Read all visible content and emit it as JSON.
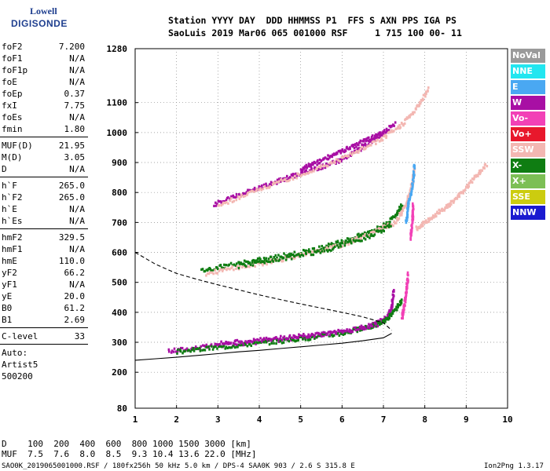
{
  "logo": {
    "line1": "Lowell",
    "line2": "DIGISONDE"
  },
  "header": {
    "line1": "Station YYYY DAY  DDD HHMMSS P1  FFS S AXN PPS IGA PS",
    "line2": "SaoLuis 2019 Mar06 065 001000 RSF     1 715 100 00- 11"
  },
  "params": {
    "group1": [
      {
        "name": "foF2",
        "value": "7.200"
      },
      {
        "name": "foF1",
        "value": "N/A"
      },
      {
        "name": "foF1p",
        "value": "N/A"
      },
      {
        "name": "foE",
        "value": "N/A"
      },
      {
        "name": "foEp",
        "value": "0.37"
      },
      {
        "name": "fxI",
        "value": "7.75"
      },
      {
        "name": "foEs",
        "value": "N/A"
      },
      {
        "name": "fmin",
        "value": "1.80"
      }
    ],
    "group2": [
      {
        "name": "MUF(D)",
        "value": "21.95"
      },
      {
        "name": "M(D)",
        "value": "3.05"
      },
      {
        "name": "D",
        "value": "N/A"
      }
    ],
    "group3": [
      {
        "name": "h`F",
        "value": "265.0"
      },
      {
        "name": "h`F2",
        "value": "265.0"
      },
      {
        "name": "h`E",
        "value": "N/A"
      },
      {
        "name": "h`Es",
        "value": "N/A"
      }
    ],
    "group4": [
      {
        "name": "hmF2",
        "value": "329.5"
      },
      {
        "name": "hmF1",
        "value": "N/A"
      },
      {
        "name": "hmE",
        "value": "110.0"
      },
      {
        "name": "yF2",
        "value": "66.2"
      },
      {
        "name": "yF1",
        "value": "N/A"
      },
      {
        "name": "yE",
        "value": "20.0"
      },
      {
        "name": "B0",
        "value": "61.2"
      },
      {
        "name": "B1",
        "value": "2.69"
      }
    ],
    "clevel": {
      "name": "C-level",
      "value": "33"
    },
    "auto_lines": [
      "Auto:",
      "Artist5",
      "500200"
    ]
  },
  "legend": [
    {
      "label": "NoVal",
      "color": "#9a9a9a"
    },
    {
      "label": "NNE",
      "color": "#22e6f0"
    },
    {
      "label": "E",
      "color": "#4aa8f2"
    },
    {
      "label": "W",
      "color": "#a80fa4"
    },
    {
      "label": "Vo-",
      "color": "#f241b6"
    },
    {
      "label": "Vo+",
      "color": "#e8182c"
    },
    {
      "label": "SSW",
      "color": "#f3b7b2"
    },
    {
      "label": "X-",
      "color": "#0f7d12"
    },
    {
      "label": "X+",
      "color": "#7cbf55"
    },
    {
      "label": "SSE",
      "color": "#cccc0f"
    },
    {
      "label": "NNW",
      "color": "#1a1ad0"
    }
  ],
  "chart_data": {
    "type": "scatter",
    "xlim": [
      1,
      10
    ],
    "ylim": [
      80,
      1280
    ],
    "x_ticks": [
      "1",
      "2",
      "3",
      "4",
      "5",
      "6",
      "7",
      "8",
      "9",
      "10"
    ],
    "y_ticks": [
      "80",
      "200",
      "300",
      "400",
      "500",
      "600",
      "700",
      "800",
      "900",
      "1000",
      "1100",
      "1280"
    ],
    "grid": true,
    "traces": [
      {
        "color": "#a80fa4",
        "points": [
          [
            1.8,
            270
          ],
          [
            2.5,
            282
          ],
          [
            3.2,
            292
          ],
          [
            4.0,
            302
          ],
          [
            4.8,
            313
          ],
          [
            5.5,
            325
          ],
          [
            6.2,
            340
          ],
          [
            6.8,
            360
          ],
          [
            7.1,
            385
          ],
          [
            7.2,
            420
          ],
          [
            7.25,
            470
          ]
        ]
      },
      {
        "color": "#0f7d12",
        "points": [
          [
            2.0,
            268
          ],
          [
            2.8,
            280
          ],
          [
            3.6,
            292
          ],
          [
            4.4,
            302
          ],
          [
            5.2,
            315
          ],
          [
            6.0,
            330
          ],
          [
            6.6,
            348
          ],
          [
            7.0,
            368
          ],
          [
            7.25,
            400
          ],
          [
            7.45,
            440
          ]
        ]
      },
      {
        "color": "#f241b6",
        "points": [
          [
            7.45,
            380
          ],
          [
            7.5,
            420
          ],
          [
            7.55,
            470
          ],
          [
            7.6,
            530
          ]
        ]
      },
      {
        "color": "#0f7d12",
        "points": [
          [
            2.6,
            540
          ],
          [
            3.2,
            555
          ],
          [
            4.0,
            575
          ],
          [
            4.8,
            595
          ],
          [
            5.5,
            615
          ],
          [
            6.0,
            635
          ],
          [
            6.5,
            660
          ],
          [
            7.0,
            690
          ],
          [
            7.3,
            720
          ],
          [
            7.45,
            760
          ]
        ]
      },
      {
        "color": "#f3b7b2",
        "points": [
          [
            2.7,
            530
          ],
          [
            3.5,
            550
          ],
          [
            4.3,
            570
          ],
          [
            5.2,
            595
          ],
          [
            6.0,
            625
          ],
          [
            6.8,
            670
          ],
          [
            7.3,
            700
          ],
          [
            7.55,
            760
          ],
          [
            7.7,
            830
          ],
          [
            7.75,
            880
          ]
        ]
      },
      {
        "color": "#4aa8f2",
        "points": [
          [
            7.55,
            700
          ],
          [
            7.6,
            760
          ],
          [
            7.7,
            820
          ],
          [
            7.75,
            890
          ]
        ]
      },
      {
        "color": "#f241b6",
        "points": [
          [
            7.65,
            650
          ],
          [
            7.7,
            700
          ],
          [
            7.72,
            760
          ]
        ]
      },
      {
        "color": "#a80fa4",
        "points": [
          [
            2.9,
            760
          ],
          [
            3.5,
            790
          ],
          [
            4.0,
            815
          ],
          [
            4.5,
            840
          ],
          [
            5.0,
            865
          ],
          [
            5.5,
            885
          ],
          [
            6.0,
            910
          ],
          [
            6.5,
            950
          ],
          [
            6.9,
            990
          ],
          [
            7.3,
            1030
          ]
        ]
      },
      {
        "color": "#f3b7b2",
        "points": [
          [
            3.0,
            755
          ],
          [
            3.8,
            800
          ],
          [
            4.6,
            840
          ],
          [
            5.4,
            880
          ],
          [
            6.2,
            925
          ],
          [
            6.9,
            975
          ],
          [
            7.4,
            1020
          ],
          [
            7.8,
            1080
          ],
          [
            8.1,
            1150
          ]
        ]
      },
      {
        "color": "#f3b7b2",
        "points": [
          [
            7.8,
            680
          ],
          [
            8.0,
            700
          ],
          [
            8.3,
            730
          ],
          [
            8.6,
            760
          ],
          [
            8.9,
            800
          ],
          [
            9.2,
            850
          ],
          [
            9.5,
            895
          ]
        ]
      },
      {
        "color": "#a80fa4",
        "points": [
          [
            5.0,
            880
          ],
          [
            5.4,
            900
          ],
          [
            5.8,
            925
          ],
          [
            6.2,
            950
          ],
          [
            6.6,
            975
          ],
          [
            7.0,
            1000
          ]
        ]
      },
      {
        "color": "#0f7d12",
        "points": [
          [
            3.5,
            555
          ],
          [
            4.2,
            572
          ],
          [
            5.0,
            590
          ],
          [
            5.8,
            615
          ],
          [
            6.6,
            650
          ],
          [
            7.2,
            690
          ]
        ]
      },
      {
        "color": "#a80fa4",
        "points": [
          [
            3.0,
            295
          ],
          [
            3.8,
            305
          ],
          [
            4.6,
            315
          ],
          [
            5.4,
            325
          ],
          [
            6.2,
            340
          ],
          [
            6.9,
            362
          ]
        ]
      }
    ],
    "curves": [
      {
        "style": "dashed",
        "points": [
          [
            1.0,
            600
          ],
          [
            1.5,
            560
          ],
          [
            2.0,
            530
          ],
          [
            2.5,
            510
          ],
          [
            3.0,
            492
          ],
          [
            3.5,
            475
          ],
          [
            4.0,
            458
          ],
          [
            4.5,
            443
          ],
          [
            5.0,
            428
          ],
          [
            5.5,
            414
          ],
          [
            6.0,
            400
          ],
          [
            6.5,
            385
          ],
          [
            7.0,
            365
          ],
          [
            7.2,
            340
          ]
        ]
      },
      {
        "style": "solid",
        "points": [
          [
            1.0,
            240
          ],
          [
            1.5,
            245
          ],
          [
            2.0,
            250
          ],
          [
            2.5,
            256
          ],
          [
            3.0,
            262
          ],
          [
            3.5,
            268
          ],
          [
            4.0,
            273
          ],
          [
            4.5,
            279
          ],
          [
            5.0,
            285
          ],
          [
            5.5,
            291
          ],
          [
            6.0,
            297
          ],
          [
            6.5,
            305
          ],
          [
            7.0,
            315
          ],
          [
            7.2,
            330
          ]
        ]
      }
    ]
  },
  "bottom": {
    "d_row": "D    100  200  400  600  800 1000 1500 3000 [km]",
    "muf_row": "MUF  7.5  7.6  8.0  8.5  9.3 10.4 13.6 22.0 [MHz]",
    "footer_left": "SAO0K_2019065001000.RSF / 180fx256h 50 kHz 5.0 km / DPS-4 SAA0K 903 / 2.6 S 315.8 E",
    "footer_right": "Ion2Png 1.3.17"
  }
}
